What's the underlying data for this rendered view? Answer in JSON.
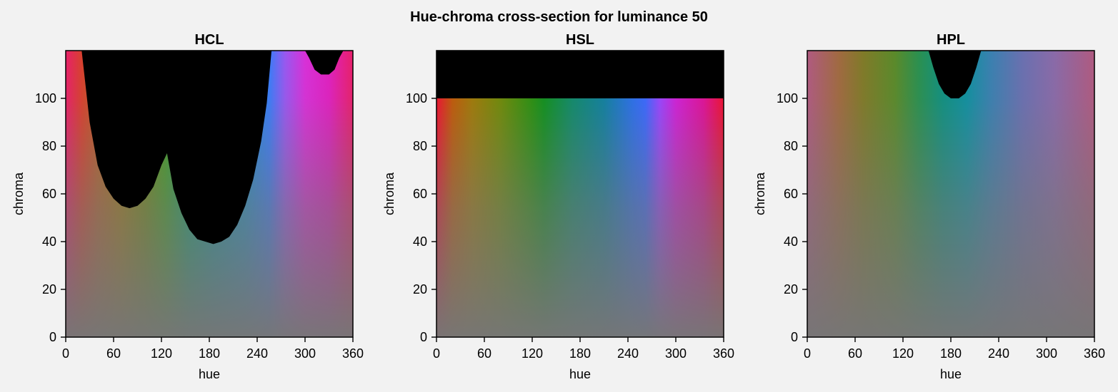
{
  "figure": {
    "title": "Hue-chroma cross-section for luminance 50"
  },
  "colors": {
    "background": "#f2f2f2",
    "out_of_gamut": "#000000",
    "axes_frame": "#000000"
  },
  "chart_data": [
    {
      "type": "heatmap",
      "title": "HCL",
      "xlabel": "hue",
      "ylabel": "chroma",
      "xlim": [
        0,
        360
      ],
      "ylim": [
        0,
        120
      ],
      "xticks": [
        0,
        60,
        120,
        180,
        240,
        300,
        360
      ],
      "yticks": [
        0,
        20,
        40,
        60,
        80,
        100
      ],
      "colorspace": "hcl",
      "luminance": 50,
      "max_chroma_boundary": [
        {
          "hue": 0,
          "chroma": 120
        },
        {
          "hue": 20,
          "chroma": 120
        },
        {
          "hue": 25,
          "chroma": 105
        },
        {
          "hue": 30,
          "chroma": 90
        },
        {
          "hue": 40,
          "chroma": 72
        },
        {
          "hue": 50,
          "chroma": 63
        },
        {
          "hue": 60,
          "chroma": 58
        },
        {
          "hue": 70,
          "chroma": 55
        },
        {
          "hue": 80,
          "chroma": 54
        },
        {
          "hue": 90,
          "chroma": 55
        },
        {
          "hue": 100,
          "chroma": 58
        },
        {
          "hue": 110,
          "chroma": 63
        },
        {
          "hue": 120,
          "chroma": 72
        },
        {
          "hue": 127,
          "chroma": 77
        },
        {
          "hue": 135,
          "chroma": 62
        },
        {
          "hue": 145,
          "chroma": 52
        },
        {
          "hue": 155,
          "chroma": 45
        },
        {
          "hue": 165,
          "chroma": 41
        },
        {
          "hue": 175,
          "chroma": 40
        },
        {
          "hue": 185,
          "chroma": 39
        },
        {
          "hue": 195,
          "chroma": 40
        },
        {
          "hue": 205,
          "chroma": 42
        },
        {
          "hue": 215,
          "chroma": 47
        },
        {
          "hue": 225,
          "chroma": 55
        },
        {
          "hue": 235,
          "chroma": 66
        },
        {
          "hue": 245,
          "chroma": 82
        },
        {
          "hue": 252,
          "chroma": 98
        },
        {
          "hue": 258,
          "chroma": 120
        },
        {
          "hue": 300,
          "chroma": 120
        },
        {
          "hue": 305,
          "chroma": 117
        },
        {
          "hue": 312,
          "chroma": 112
        },
        {
          "hue": 320,
          "chroma": 110
        },
        {
          "hue": 330,
          "chroma": 110
        },
        {
          "hue": 337,
          "chroma": 112
        },
        {
          "hue": 343,
          "chroma": 117
        },
        {
          "hue": 348,
          "chroma": 120
        },
        {
          "hue": 360,
          "chroma": 120
        }
      ]
    },
    {
      "type": "heatmap",
      "title": "HSL",
      "xlabel": "hue",
      "ylabel": "chroma",
      "xlim": [
        0,
        360
      ],
      "ylim": [
        0,
        120
      ],
      "xticks": [
        0,
        60,
        120,
        180,
        240,
        300,
        360
      ],
      "yticks": [
        0,
        20,
        40,
        60,
        80,
        100
      ],
      "colorspace": "hsl",
      "luminance": 50,
      "max_chroma_boundary": [
        {
          "hue": 0,
          "chroma": 100
        },
        {
          "hue": 360,
          "chroma": 100
        }
      ]
    },
    {
      "type": "heatmap",
      "title": "HPL",
      "xlabel": "hue",
      "ylabel": "chroma",
      "xlim": [
        0,
        360
      ],
      "ylim": [
        0,
        120
      ],
      "xticks": [
        0,
        60,
        120,
        180,
        240,
        300,
        360
      ],
      "yticks": [
        0,
        20,
        40,
        60,
        80,
        100
      ],
      "colorspace": "hpl",
      "luminance": 50,
      "max_chroma_boundary": [
        {
          "hue": 0,
          "chroma": 120
        },
        {
          "hue": 152,
          "chroma": 120
        },
        {
          "hue": 158,
          "chroma": 113
        },
        {
          "hue": 165,
          "chroma": 106
        },
        {
          "hue": 172,
          "chroma": 102
        },
        {
          "hue": 180,
          "chroma": 100
        },
        {
          "hue": 190,
          "chroma": 100
        },
        {
          "hue": 198,
          "chroma": 102
        },
        {
          "hue": 205,
          "chroma": 106
        },
        {
          "hue": 212,
          "chroma": 113
        },
        {
          "hue": 218,
          "chroma": 120
        },
        {
          "hue": 360,
          "chroma": 120
        }
      ]
    }
  ]
}
